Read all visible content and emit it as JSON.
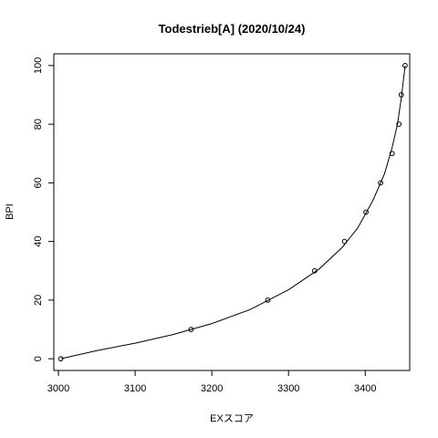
{
  "chart_data": {
    "type": "scatter",
    "title": "Todestrieb[A] (2020/10/24)",
    "xlabel": "EXスコア",
    "ylabel": "BPI",
    "xlim": [
      2994,
      3458
    ],
    "ylim": [
      -4,
      104
    ],
    "x_ticks": [
      3000,
      3100,
      3200,
      3300,
      3400
    ],
    "y_ticks": [
      0,
      20,
      40,
      60,
      80,
      100
    ],
    "grid": false,
    "points": [
      {
        "x": 3003,
        "y": 0
      },
      {
        "x": 3173,
        "y": 10
      },
      {
        "x": 3273,
        "y": 20
      },
      {
        "x": 3334,
        "y": 30
      },
      {
        "x": 3373,
        "y": 40
      },
      {
        "x": 3401,
        "y": 50
      },
      {
        "x": 3420,
        "y": 60
      },
      {
        "x": 3435,
        "y": 70
      },
      {
        "x": 3444,
        "y": 80
      },
      {
        "x": 3447,
        "y": 90
      },
      {
        "x": 3452,
        "y": 100
      }
    ],
    "fit_line": [
      {
        "x": 3003,
        "y": 0
      },
      {
        "x": 3050,
        "y": 2.8
      },
      {
        "x": 3100,
        "y": 5.3
      },
      {
        "x": 3150,
        "y": 8.3
      },
      {
        "x": 3200,
        "y": 12.0
      },
      {
        "x": 3250,
        "y": 16.8
      },
      {
        "x": 3300,
        "y": 23.5
      },
      {
        "x": 3340,
        "y": 30.6
      },
      {
        "x": 3370,
        "y": 38.0
      },
      {
        "x": 3390,
        "y": 44.5
      },
      {
        "x": 3410,
        "y": 54.0
      },
      {
        "x": 3425,
        "y": 63.0
      },
      {
        "x": 3435,
        "y": 72.0
      },
      {
        "x": 3442,
        "y": 80.0
      },
      {
        "x": 3447,
        "y": 89.0
      },
      {
        "x": 3452,
        "y": 100
      }
    ]
  }
}
